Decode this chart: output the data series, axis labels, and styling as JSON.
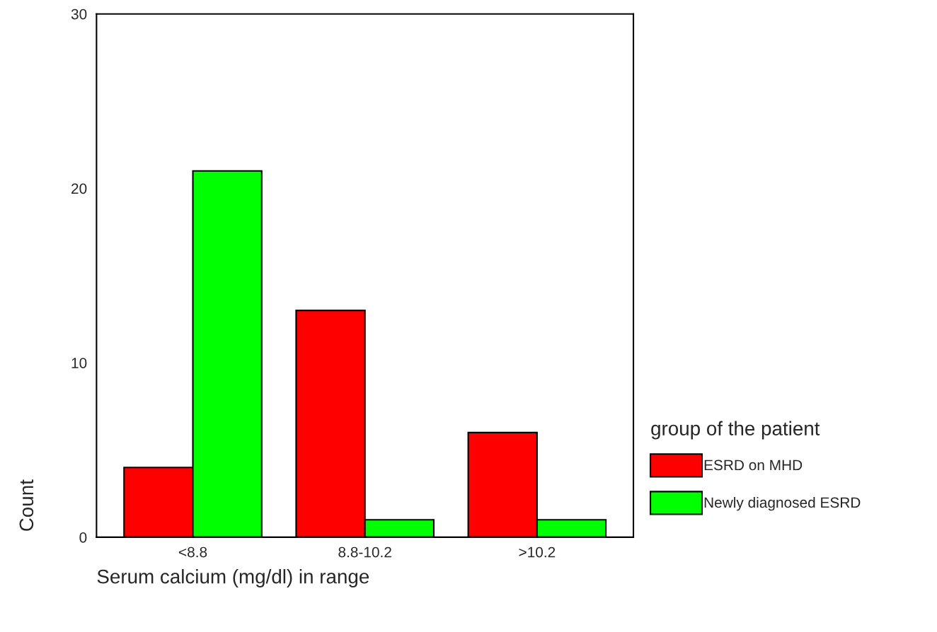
{
  "chart_data": {
    "type": "bar",
    "xlabel": "Serum calcium (mg/dl) in range",
    "ylabel": "Count",
    "legend_title": "group of the patient",
    "categories": [
      "<8.8",
      "8.8-10.2",
      ">10.2"
    ],
    "series": [
      {
        "name": "ESRD on MHD",
        "color": "#ff0000",
        "values": [
          4,
          13,
          6
        ]
      },
      {
        "name": "Newly diagnosed ESRD",
        "color": "#00ff00",
        "values": [
          21,
          1,
          1
        ]
      }
    ],
    "ylim": [
      0,
      30
    ],
    "yticks": [
      0,
      10,
      20,
      30
    ],
    "grid": false,
    "legend": "right"
  }
}
